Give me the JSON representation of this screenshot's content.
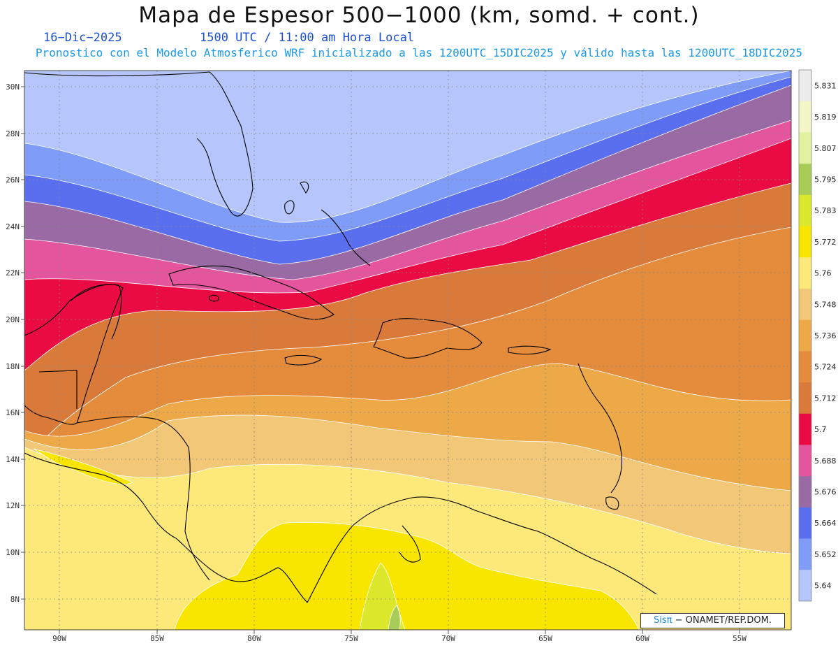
{
  "title": "Mapa de Espesor 500−1000 (km, somd. + cont.)",
  "date_label": "16−Dic−2025",
  "time_label": "1500 UTC / 11:00 am Hora Local",
  "model_info": "Pronostico con el Modelo Atmosferico WRF inicializado a las 1200UTC_15DIC2025 y válido hasta las  1200UTC_18DIC2025",
  "credit": {
    "logo": "Sisπ",
    "text": "− ONAMET/REP.DOM."
  },
  "axes": {
    "lon_labels": [
      "90W",
      "85W",
      "80W",
      "75W",
      "70W",
      "65W",
      "60W",
      "55W"
    ],
    "lat_labels": [
      "30N",
      "28N",
      "26N",
      "24N",
      "22N",
      "20N",
      "18N",
      "16N",
      "14N",
      "12N",
      "10N",
      "8N"
    ]
  },
  "colorbar": {
    "levels": [
      "5.831",
      "5.819",
      "5.807",
      "5.795",
      "5.783",
      "5.772",
      "5.76",
      "5.748",
      "5.736",
      "5.724",
      "5.712",
      "5.7",
      "5.688",
      "5.676",
      "5.664",
      "5.652",
      "5.64"
    ],
    "colors": [
      "#ececec",
      "#f4f6c8",
      "#e2f2a0",
      "#a8cc58",
      "#dce82c",
      "#f8e600",
      "#fde97a",
      "#f2c878",
      "#eda848",
      "#e48b3c",
      "#da7a3a",
      "#ea0a44",
      "#e4559e",
      "#9a6aa4",
      "#5a6ef0",
      "#7e9cf8",
      "#b6c6fc"
    ]
  }
}
